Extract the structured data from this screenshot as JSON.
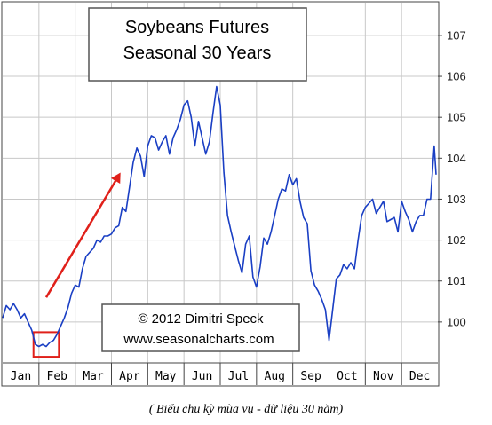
{
  "chart_data": {
    "type": "line",
    "title_lines": [
      "Soybeans Futures",
      "Seasonal 30 Years"
    ],
    "credit_lines": [
      "© 2012  Dimitri Speck",
      "www.seasonalcharts.com"
    ],
    "months": [
      "Jan",
      "Feb",
      "Mar",
      "Apr",
      "May",
      "Jun",
      "Jul",
      "Aug",
      "Sep",
      "Oct",
      "Nov",
      "Dec"
    ],
    "yticks": [
      100,
      101,
      102,
      103,
      104,
      105,
      106,
      107
    ],
    "ylim": [
      99.0,
      107.8
    ],
    "xlim": [
      0,
      12
    ],
    "grid": true,
    "line_color": "#1a3fc4",
    "arrow_color": "#e0201a",
    "highlight_color": "#e0201a",
    "highlight_range": {
      "x": [
        0.85,
        1.55
      ],
      "y": [
        99.15,
        99.75
      ]
    },
    "arrow": {
      "from": [
        1.2,
        100.6
      ],
      "to": [
        3.25,
        103.65
      ]
    },
    "series": [
      {
        "x": [
          0.0,
          0.1,
          0.2,
          0.3,
          0.4,
          0.5,
          0.6,
          0.7,
          0.8,
          0.9,
          1.0,
          1.1,
          1.2,
          1.3,
          1.4,
          1.5,
          1.6,
          1.7,
          1.8,
          1.9,
          2.0,
          2.1,
          2.2,
          2.3,
          2.4,
          2.5,
          2.6,
          2.7,
          2.8,
          2.9,
          3.0,
          3.1,
          3.2,
          3.3,
          3.4,
          3.5,
          3.6,
          3.7,
          3.8,
          3.9,
          4.0,
          4.1,
          4.2,
          4.3,
          4.4,
          4.5,
          4.6,
          4.7,
          4.8,
          4.9,
          5.0,
          5.1,
          5.2,
          5.3,
          5.4,
          5.5,
          5.6,
          5.7,
          5.8,
          5.9,
          6.0,
          6.1,
          6.2,
          6.3,
          6.4,
          6.5,
          6.6,
          6.7,
          6.8,
          6.9,
          7.0,
          7.1,
          7.2,
          7.3,
          7.4,
          7.5,
          7.6,
          7.7,
          7.8,
          7.9,
          8.0,
          8.1,
          8.2,
          8.3,
          8.4,
          8.5,
          8.6,
          8.7,
          8.8,
          8.9,
          9.0,
          9.1,
          9.2,
          9.3,
          9.4,
          9.5,
          9.6,
          9.7,
          9.8,
          9.9,
          10.0,
          10.1,
          10.2,
          10.3,
          10.4,
          10.5,
          10.6,
          10.7,
          10.8,
          10.9,
          11.0,
          11.1,
          11.2,
          11.3,
          11.4,
          11.5,
          11.6,
          11.7,
          11.8,
          11.9,
          11.95
        ],
        "y": [
          100.1,
          100.4,
          100.3,
          100.45,
          100.3,
          100.1,
          100.2,
          100.0,
          99.8,
          99.45,
          99.4,
          99.45,
          99.4,
          99.5,
          99.55,
          99.7,
          99.9,
          100.1,
          100.35,
          100.7,
          100.9,
          100.85,
          101.3,
          101.6,
          101.7,
          101.8,
          102.0,
          101.95,
          102.1,
          102.1,
          102.15,
          102.3,
          102.35,
          102.8,
          102.7,
          103.3,
          103.9,
          104.25,
          104.05,
          103.55,
          104.3,
          104.55,
          104.5,
          104.2,
          104.4,
          104.55,
          104.1,
          104.5,
          104.7,
          104.95,
          105.3,
          105.4,
          105.0,
          104.3,
          104.9,
          104.5,
          104.1,
          104.4,
          105.1,
          105.75,
          105.3,
          103.65,
          102.6,
          102.2,
          101.85,
          101.5,
          101.2,
          101.9,
          102.1,
          101.1,
          100.85,
          101.35,
          102.05,
          101.9,
          102.2,
          102.6,
          103.0,
          103.25,
          103.2,
          103.6,
          103.35,
          103.5,
          102.95,
          102.55,
          102.4,
          101.25,
          100.9,
          100.75,
          100.55,
          100.3,
          99.55,
          100.3,
          101.05,
          101.15,
          101.4,
          101.3,
          101.45,
          101.3,
          102.0,
          102.6,
          102.8,
          102.9,
          103.0,
          102.65,
          102.8,
          102.95,
          102.45,
          102.5,
          102.55,
          102.2,
          102.95,
          102.7,
          102.5,
          102.2,
          102.45,
          102.6,
          102.6,
          103.0,
          103.0,
          104.3,
          103.6
        ]
      }
    ]
  },
  "caption": "( Biểu chu kỳ mùa vụ - dữ liệu 30 năm)"
}
